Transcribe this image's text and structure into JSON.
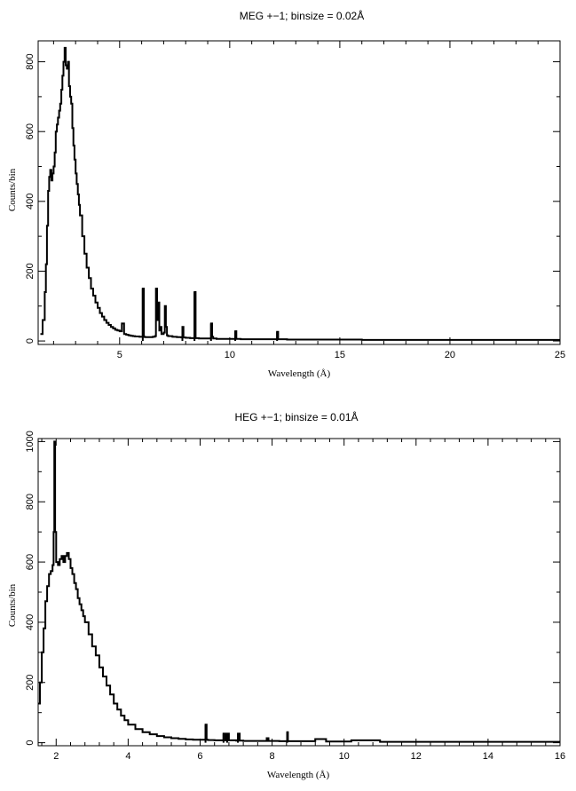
{
  "chart_data": [
    {
      "type": "line",
      "title": "MEG +−1; binsize = 0.02Å",
      "xlabel": "Wavelength (Å)",
      "ylabel": "Counts/bin",
      "xlim": [
        1.3,
        25
      ],
      "ylim": [
        -10,
        860
      ],
      "xticks": [
        5,
        10,
        15,
        20,
        25
      ],
      "yticks": [
        0,
        200,
        400,
        600,
        800
      ],
      "grid": false,
      "legend": "none",
      "line_color": "#000000",
      "series": [
        {
          "x": [
            1.4,
            1.5,
            1.6,
            1.65,
            1.7,
            1.75,
            1.8,
            1.85,
            1.9,
            1.95,
            2.0,
            2.05,
            2.1,
            2.15,
            2.2,
            2.25,
            2.3,
            2.35,
            2.4,
            2.45,
            2.5,
            2.55,
            2.6,
            2.65,
            2.7,
            2.75,
            2.8,
            2.85,
            2.9,
            2.95,
            3.0,
            3.05,
            3.1,
            3.15,
            3.2,
            3.3,
            3.4,
            3.5,
            3.6,
            3.7,
            3.8,
            3.9,
            4.0,
            4.1,
            4.2,
            4.3,
            4.4,
            4.5,
            4.6,
            4.7,
            4.8,
            4.9,
            5.0,
            5.1,
            5.2,
            5.3,
            5.4,
            5.5,
            5.6,
            5.7,
            5.8,
            5.9,
            6.0,
            6.05,
            6.1,
            6.15,
            6.2,
            6.3,
            6.4,
            6.5,
            6.6,
            6.65,
            6.7,
            6.75,
            6.8,
            6.85,
            6.9,
            7.0,
            7.05,
            7.1,
            7.15,
            7.2,
            7.4,
            7.6,
            7.8,
            7.85,
            7.9,
            8.0,
            8.2,
            8.35,
            8.4,
            8.45,
            8.6,
            8.8,
            9.0,
            9.15,
            9.2,
            9.25,
            9.4,
            9.6,
            9.8,
            10.0,
            10.2,
            10.25,
            10.3,
            10.5,
            10.8,
            11.0,
            11.5,
            12.1,
            12.15,
            12.2,
            12.6,
            13.0,
            13.5,
            14.0,
            15.0,
            16.0,
            17.0,
            18.0,
            19.0,
            20.0,
            21.0,
            22.0,
            23.0,
            24.0,
            25.0
          ],
          "values": [
            20,
            60,
            140,
            220,
            330,
            430,
            470,
            490,
            460,
            480,
            500,
            540,
            600,
            620,
            640,
            660,
            680,
            720,
            760,
            800,
            840,
            790,
            780,
            800,
            730,
            700,
            680,
            610,
            560,
            520,
            480,
            450,
            420,
            390,
            360,
            300,
            250,
            210,
            180,
            150,
            130,
            110,
            95,
            80,
            70,
            60,
            52,
            46,
            40,
            36,
            32,
            30,
            28,
            50,
            20,
            18,
            16,
            15,
            14,
            13,
            13,
            12,
            12,
            150,
            12,
            11,
            11,
            11,
            11,
            12,
            14,
            150,
            60,
            110,
            30,
            40,
            20,
            24,
            100,
            40,
            16,
            14,
            12,
            11,
            10,
            40,
            10,
            9,
            8,
            8,
            140,
            8,
            7,
            7,
            7,
            50,
            12,
            7,
            6,
            6,
            6,
            6,
            6,
            28,
            6,
            5,
            5,
            5,
            5,
            5,
            26,
            5,
            4,
            4,
            4,
            4,
            4,
            3,
            3,
            3,
            3,
            3,
            3,
            3,
            3,
            3,
            3
          ]
        }
      ]
    },
    {
      "type": "line",
      "title": "HEG +−1; binsize = 0.01Å",
      "xlabel": "Wavelength (Å)",
      "ylabel": "Counts/bin",
      "xlim": [
        1.5,
        16
      ],
      "ylim": [
        -10,
        1010
      ],
      "xticks": [
        2,
        4,
        6,
        8,
        10,
        12,
        14,
        16
      ],
      "yticks": [
        0,
        200,
        400,
        600,
        800,
        1000
      ],
      "grid": false,
      "legend": "none",
      "line_color": "#000000",
      "series": [
        {
          "x": [
            1.5,
            1.55,
            1.6,
            1.65,
            1.7,
            1.75,
            1.8,
            1.85,
            1.9,
            1.93,
            1.95,
            1.97,
            2.0,
            2.05,
            2.1,
            2.15,
            2.2,
            2.25,
            2.3,
            2.35,
            2.4,
            2.45,
            2.5,
            2.55,
            2.6,
            2.65,
            2.7,
            2.75,
            2.8,
            2.9,
            3.0,
            3.1,
            3.2,
            3.3,
            3.4,
            3.5,
            3.6,
            3.7,
            3.8,
            3.9,
            4.0,
            4.2,
            4.4,
            4.6,
            4.8,
            5.0,
            5.2,
            5.4,
            5.6,
            5.8,
            6.0,
            6.15,
            6.18,
            6.22,
            6.4,
            6.6,
            6.65,
            6.7,
            6.75,
            6.8,
            7.0,
            7.05,
            7.1,
            7.2,
            7.5,
            7.85,
            7.9,
            8.0,
            8.2,
            8.4,
            8.42,
            8.44,
            8.6,
            8.8,
            9.0,
            9.2,
            9.5,
            10.0,
            10.2,
            11.0,
            12.0,
            13.0,
            14.0,
            15.0,
            16.0
          ],
          "values": [
            130,
            200,
            300,
            380,
            470,
            520,
            560,
            570,
            590,
            700,
            1000,
            700,
            600,
            590,
            610,
            620,
            600,
            620,
            630,
            610,
            580,
            560,
            530,
            510,
            480,
            460,
            440,
            420,
            400,
            360,
            320,
            290,
            250,
            220,
            190,
            160,
            130,
            110,
            90,
            75,
            60,
            45,
            35,
            28,
            22,
            18,
            15,
            13,
            11,
            10,
            10,
            60,
            10,
            9,
            8,
            8,
            30,
            8,
            30,
            8,
            7,
            30,
            7,
            6,
            6,
            15,
            6,
            6,
            5,
            5,
            35,
            5,
            5,
            5,
            5,
            12,
            4,
            4,
            8,
            3,
            3,
            3,
            3,
            3,
            3
          ]
        }
      ]
    }
  ]
}
